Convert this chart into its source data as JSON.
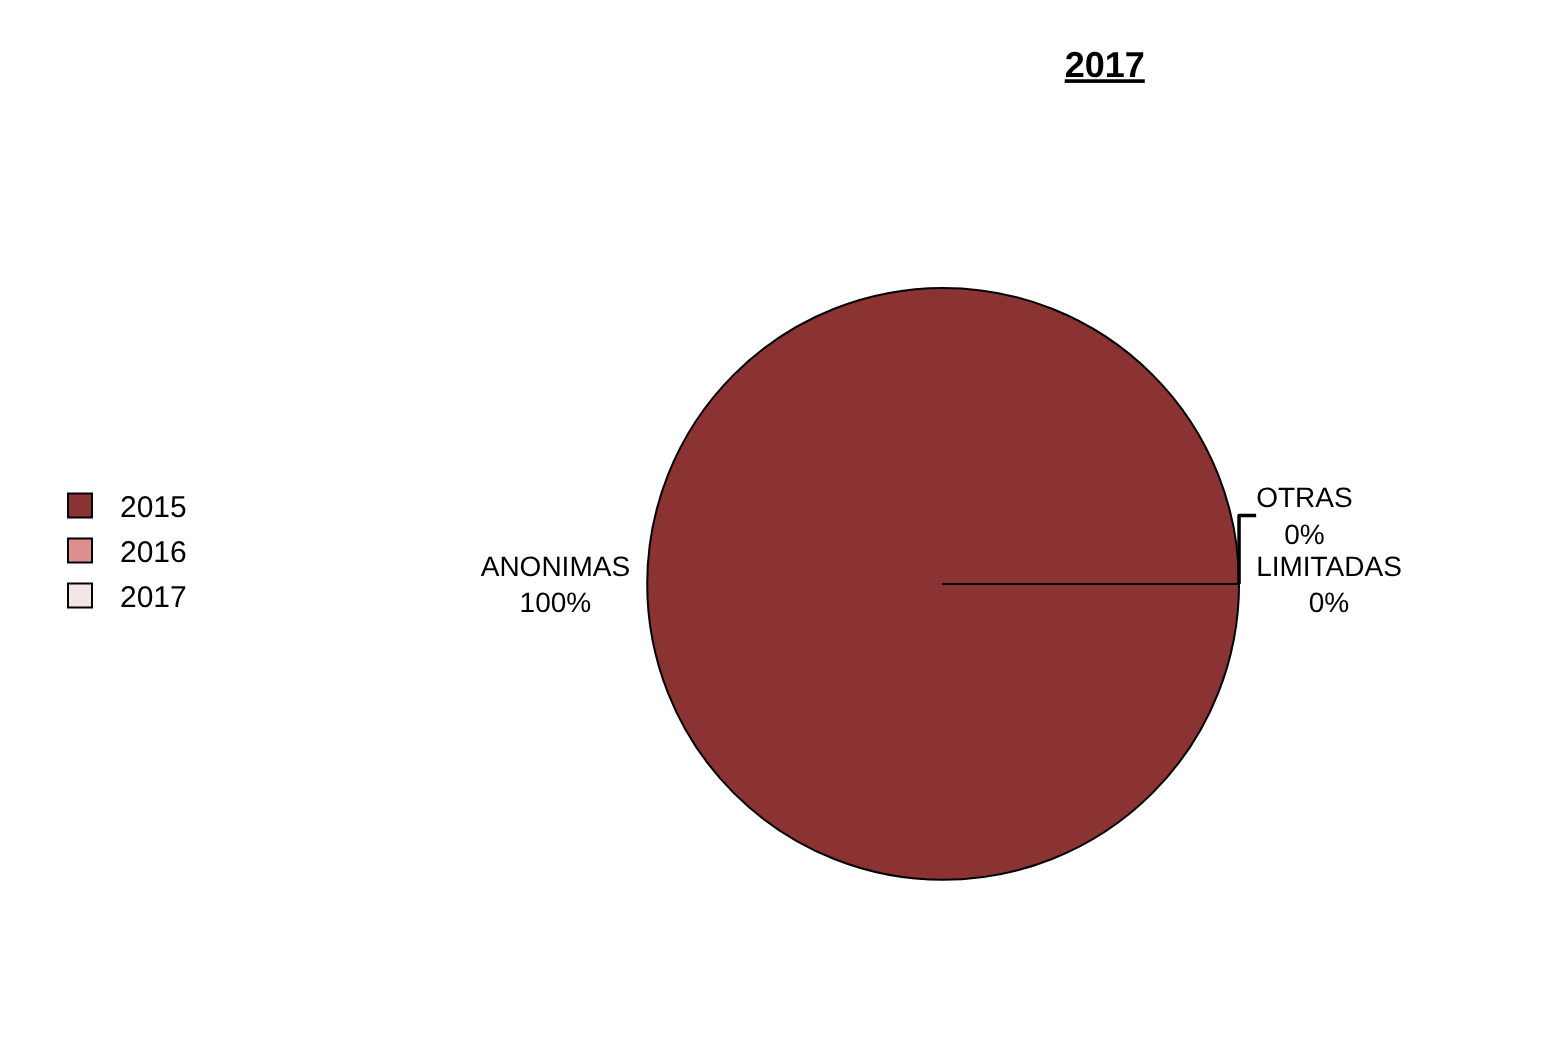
{
  "chart_data": {
    "type": "pie",
    "title": "2017",
    "categories": [
      "2015",
      "2016",
      "2017"
    ],
    "values": [
      100,
      0,
      0
    ],
    "colors": [
      "#8b3232",
      "#e08f8f",
      "#f5e6e6"
    ],
    "value_labels": [
      "ANONIMAS\n100%",
      "LIMITADAS\n0%",
      "OTRAS\n0%"
    ],
    "legend": "left"
  }
}
